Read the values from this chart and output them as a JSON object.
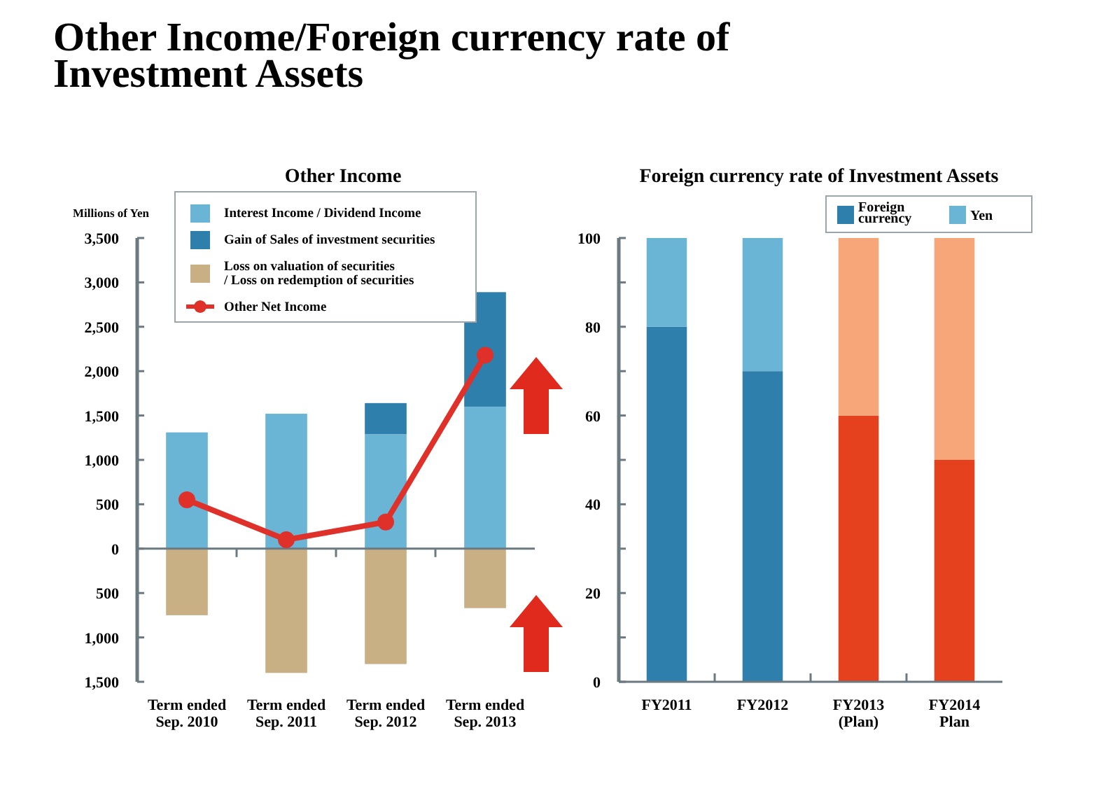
{
  "chart_data": [
    {
      "type": "other",
      "title": "Other Income/Foreign currency rate of\nInvestment Assets"
    },
    {
      "type": "bar",
      "stacked": true,
      "title": "Other Income",
      "ylabel": "Millions of Yen",
      "legend": "top",
      "categories": [
        "Term ended\nSep. 2010",
        "Term ended\nSep. 2011",
        "Term ended\nSep. 2012",
        "Term ended\nSep. 2013"
      ],
      "ylim": [
        -1500,
        3500
      ],
      "yticks": [
        {
          "value": -1500,
          "label": "1,500"
        },
        {
          "value": -1000,
          "label": "1,000"
        },
        {
          "value": -500,
          "label": "500"
        },
        0,
        {
          "value": 500,
          "label": "500"
        },
        {
          "value": 1000,
          "label": "1,000"
        },
        {
          "value": 1500,
          "label": "1,500"
        },
        {
          "value": 2000,
          "label": "2,000"
        },
        {
          "value": 2500,
          "label": "2,500"
        },
        {
          "value": 3000,
          "label": "3,000"
        },
        {
          "value": 3500,
          "label": "3,500"
        }
      ],
      "series": [
        {
          "name": "Interest Income / Dividend Income",
          "color": "#6ab4d6",
          "values": [
            1310,
            1520,
            1290,
            1600
          ]
        },
        {
          "name": "Gain of Sales of investment securities",
          "color": "#2e7fac",
          "values": [
            0,
            0,
            350,
            1290
          ]
        },
        {
          "name": "Loss on valuation of securities\n/ Loss on redemption of securities",
          "color": "#c8b084",
          "values": [
            -750,
            -1400,
            -1300,
            -670
          ]
        },
        {
          "name": "Other Net Income",
          "type": "line",
          "color": "#e0302a",
          "marker": "circle",
          "line_style": "solid",
          "values": [
            550,
            100,
            300,
            2180
          ]
        }
      ]
    },
    {
      "type": "bar",
      "stacked": true,
      "title": "Foreign currency rate of Investment Assets",
      "legend": "top right",
      "categories": [
        "FY2011",
        "FY2012",
        "FY2013\n(Plan)",
        "FY2014\nPlan"
      ],
      "ylim": [
        0,
        100
      ],
      "yticks": [
        0,
        {
          "value": 10,
          "label": null
        },
        20,
        {
          "value": 30,
          "label": null
        },
        40,
        {
          "value": 50,
          "label": null
        },
        60,
        {
          "value": 70,
          "label": null
        },
        80,
        {
          "value": 90,
          "label": null
        },
        100
      ],
      "series": [
        {
          "name": "Foreign\ncurrency",
          "color": "#2e7fac",
          "colors": [
            "#2e7fac",
            "#2e7fac",
            "#e5411f",
            "#e5411f"
          ],
          "values": [
            80,
            70,
            60,
            50
          ]
        },
        {
          "name": "Yen",
          "color": "#6ab4d6",
          "colors": [
            "#6ab4d6",
            "#6ab4d6",
            "#f6a678",
            "#f6a678"
          ],
          "values": [
            20,
            30,
            40,
            50
          ]
        }
      ]
    }
  ]
}
